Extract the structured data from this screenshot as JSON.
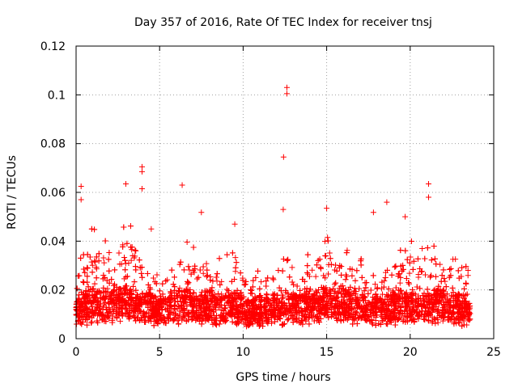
{
  "chart_data": {
    "type": "scatter",
    "title": "Day 357 of 2016, Rate Of TEC Index for receiver tnsj",
    "xlabel": "GPS time / hours",
    "ylabel": "ROTI / TECUs",
    "xlim": [
      0,
      25
    ],
    "ylim": [
      0,
      0.12
    ],
    "x_ticks": [
      0,
      5,
      10,
      15,
      20,
      25
    ],
    "x_tick_labels": [
      "0",
      "5",
      "10",
      "15",
      "20",
      "25"
    ],
    "y_ticks": [
      0,
      0.02,
      0.04,
      0.06,
      0.08,
      0.1,
      0.12
    ],
    "y_tick_labels": [
      "0",
      "0.02",
      "0.04",
      "0.06",
      "0.08",
      "0.1",
      "0.12"
    ],
    "grid": true,
    "marker": "+",
    "series_color": "#ff0000",
    "data_range_x": [
      0,
      23.6
    ],
    "notable_points": [
      {
        "x": 12.62,
        "y": 0.103
      },
      {
        "x": 12.62,
        "y": 0.1005
      },
      {
        "x": 12.42,
        "y": 0.0745
      },
      {
        "x": 3.95,
        "y": 0.0705
      },
      {
        "x": 3.95,
        "y": 0.0685
      },
      {
        "x": 3.95,
        "y": 0.0615
      },
      {
        "x": 2.98,
        "y": 0.0635
      },
      {
        "x": 6.35,
        "y": 0.063
      },
      {
        "x": 21.1,
        "y": 0.0635
      },
      {
        "x": 21.1,
        "y": 0.058
      },
      {
        "x": 0.3,
        "y": 0.0625
      },
      {
        "x": 0.3,
        "y": 0.057
      },
      {
        "x": 15.0,
        "y": 0.0535
      },
      {
        "x": 18.6,
        "y": 0.056
      },
      {
        "x": 12.4,
        "y": 0.053
      },
      {
        "x": 19.7,
        "y": 0.05
      },
      {
        "x": 9.5,
        "y": 0.047
      },
      {
        "x": 7.5,
        "y": 0.0518
      },
      {
        "x": 17.8,
        "y": 0.0518
      },
      {
        "x": 4.5,
        "y": 0.045
      }
    ],
    "envelope": [
      {
        "x": 0.0,
        "upper": 0.03,
        "base": 0.012
      },
      {
        "x": 0.5,
        "upper": 0.035,
        "base": 0.013
      },
      {
        "x": 1.0,
        "upper": 0.045,
        "base": 0.014
      },
      {
        "x": 2.0,
        "upper": 0.04,
        "base": 0.014
      },
      {
        "x": 3.0,
        "upper": 0.05,
        "base": 0.015
      },
      {
        "x": 4.0,
        "upper": 0.035,
        "base": 0.013
      },
      {
        "x": 5.0,
        "upper": 0.028,
        "base": 0.012
      },
      {
        "x": 6.5,
        "upper": 0.04,
        "base": 0.014
      },
      {
        "x": 8.0,
        "upper": 0.03,
        "base": 0.013
      },
      {
        "x": 9.5,
        "upper": 0.035,
        "base": 0.013
      },
      {
        "x": 10.5,
        "upper": 0.025,
        "base": 0.011
      },
      {
        "x": 12.0,
        "upper": 0.035,
        "base": 0.013
      },
      {
        "x": 13.5,
        "upper": 0.032,
        "base": 0.013
      },
      {
        "x": 15.0,
        "upper": 0.042,
        "base": 0.015
      },
      {
        "x": 16.5,
        "upper": 0.035,
        "base": 0.014
      },
      {
        "x": 17.5,
        "upper": 0.028,
        "base": 0.012
      },
      {
        "x": 19.0,
        "upper": 0.035,
        "base": 0.013
      },
      {
        "x": 21.0,
        "upper": 0.04,
        "base": 0.014
      },
      {
        "x": 22.5,
        "upper": 0.035,
        "base": 0.013
      },
      {
        "x": 23.6,
        "upper": 0.03,
        "base": 0.012
      }
    ]
  }
}
